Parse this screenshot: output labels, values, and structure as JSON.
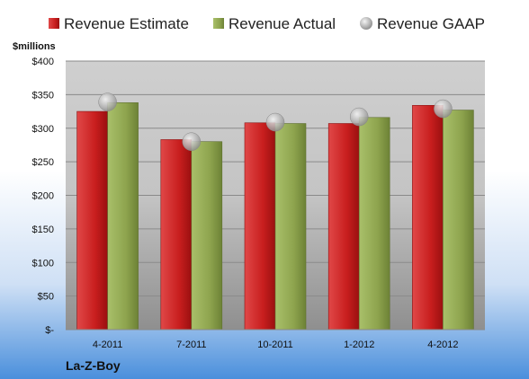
{
  "chart_data": {
    "type": "bar",
    "ylabel": "$millions",
    "footer": "La-Z-Boy",
    "categories": [
      "4-2011",
      "7-2011",
      "10-2011",
      "1-2012",
      "4-2012"
    ],
    "ylim": [
      0,
      400
    ],
    "yticks": [
      {
        "value": 0,
        "label": "$-"
      },
      {
        "value": 50,
        "label": "$50"
      },
      {
        "value": 100,
        "label": "$100"
      },
      {
        "value": 150,
        "label": "$150"
      },
      {
        "value": 200,
        "label": "$200"
      },
      {
        "value": 250,
        "label": "$250"
      },
      {
        "value": 300,
        "label": "$300"
      },
      {
        "value": 350,
        "label": "$350"
      },
      {
        "value": 400,
        "label": "$400"
      }
    ],
    "grid": true,
    "legend_position": "top",
    "series": [
      {
        "name": "Revenue Estimate",
        "kind": "bar",
        "color": "#cc2222",
        "values": [
          325,
          283,
          308,
          307,
          334
        ]
      },
      {
        "name": "Revenue Actual",
        "kind": "bar",
        "color": "#8fa84e",
        "values": [
          338,
          280,
          307,
          316,
          327
        ]
      },
      {
        "name": "Revenue GAAP",
        "kind": "marker",
        "color": "#b8b8b8",
        "values": [
          339,
          280,
          309,
          317,
          329
        ]
      }
    ]
  }
}
